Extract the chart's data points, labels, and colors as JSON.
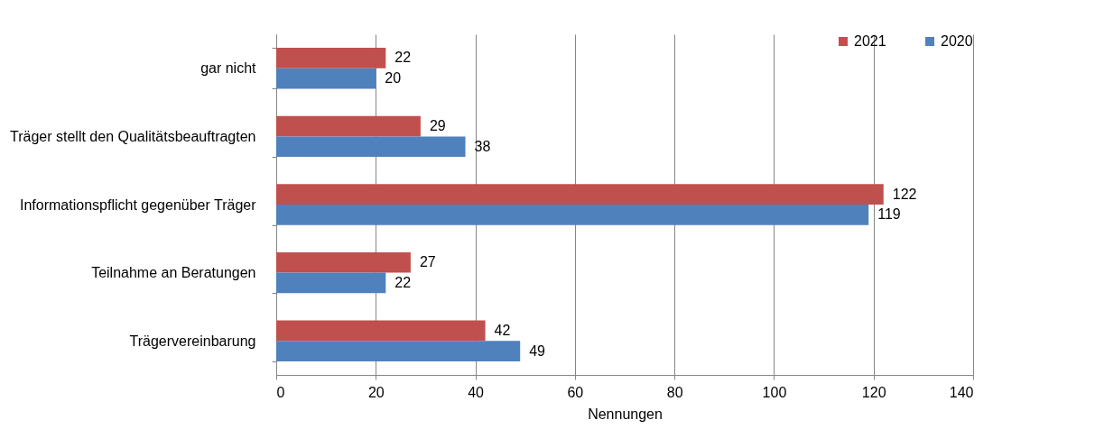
{
  "chart_data": {
    "type": "bar",
    "orientation": "horizontal",
    "xlabel": "Nennungen",
    "categories": [
      "gar nicht",
      "Träger stellt den Qualitätsbeauftragten",
      "Informationspflicht gegenüber Träger",
      "Teilnahme an Beratungen",
      "Trägervereinbarung"
    ],
    "series": [
      {
        "name": "2021",
        "color": "#c0504d",
        "values": [
          22,
          29,
          122,
          27,
          42
        ]
      },
      {
        "name": "2020",
        "color": "#4f81bd",
        "values": [
          20,
          38,
          119,
          22,
          49
        ]
      }
    ],
    "xlim": [
      0,
      140
    ],
    "xticks": [
      0,
      20,
      40,
      60,
      80,
      100,
      120,
      140
    ],
    "grid": "x",
    "legend": "top right",
    "data_labels": true
  }
}
